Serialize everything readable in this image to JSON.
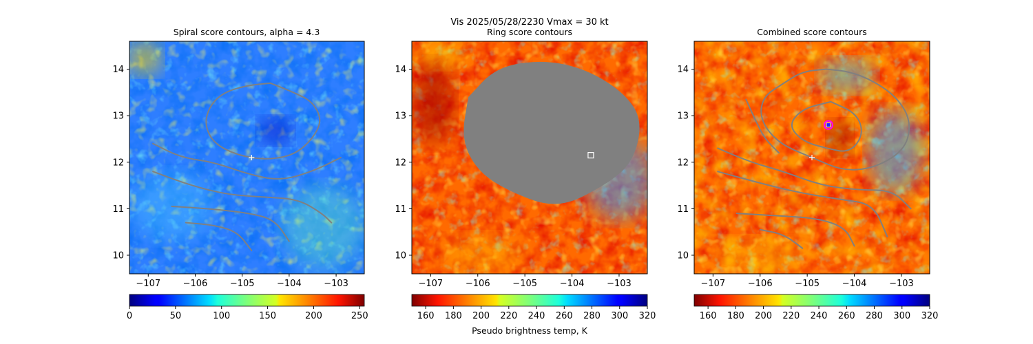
{
  "figure": {
    "suptitle_line1": "Vis  2025/05/28/2230    Vmax = 30 kt",
    "colorbar_label": "Pseudo brightness temp, K"
  },
  "colors": {
    "contour": "#808080",
    "overlay_gray": "#808080",
    "center_marker": "#ffffff",
    "ring_circle": "#ff00ff",
    "ring_center": "#2020ff"
  },
  "chart_data": [
    {
      "type": "heatmap",
      "title": "Spiral score contours, alpha =  4.3",
      "colormap": "jet",
      "x_ticks": [
        "−107",
        "−106",
        "−105",
        "−104",
        "−103"
      ],
      "y_ticks": [
        "10",
        "11",
        "12",
        "13",
        "14"
      ],
      "xlim": [
        -107.4,
        -102.4
      ],
      "ylim": [
        9.6,
        14.6
      ],
      "colorbar": {
        "ticks": [
          "0",
          "50",
          "100",
          "150",
          "200",
          "250"
        ],
        "range": [
          0,
          255
        ],
        "reversed": false
      },
      "markers": [
        {
          "kind": "plus",
          "lon": -104.8,
          "lat": 12.1
        }
      ],
      "contours": [
        [
          [
            -104.4,
            13.7
          ],
          [
            -104.9,
            13.65
          ],
          [
            -105.4,
            13.5
          ],
          [
            -105.7,
            13.2
          ],
          [
            -105.8,
            12.8
          ],
          [
            -105.6,
            12.4
          ],
          [
            -105.1,
            12.15
          ],
          [
            -104.5,
            12.05
          ],
          [
            -103.9,
            12.15
          ],
          [
            -103.5,
            12.5
          ],
          [
            -103.3,
            12.9
          ],
          [
            -103.5,
            13.3
          ],
          [
            -103.9,
            13.5
          ],
          [
            -104.4,
            13.7
          ]
        ],
        [
          [
            -106.9,
            12.4
          ],
          [
            -106.3,
            12.1
          ],
          [
            -105.6,
            12.0
          ],
          [
            -104.9,
            11.75
          ],
          [
            -104.2,
            11.6
          ],
          [
            -103.5,
            11.8
          ],
          [
            -102.9,
            12.1
          ]
        ],
        [
          [
            -106.9,
            11.8
          ],
          [
            -106.1,
            11.5
          ],
          [
            -105.3,
            11.3
          ],
          [
            -104.5,
            11.25
          ],
          [
            -103.8,
            11.2
          ],
          [
            -103.3,
            10.9
          ],
          [
            -103.1,
            10.7
          ]
        ],
        [
          [
            -106.5,
            11.05
          ],
          [
            -105.7,
            11.0
          ],
          [
            -104.8,
            10.9
          ],
          [
            -104.3,
            10.75
          ],
          [
            -104.0,
            10.3
          ]
        ],
        [
          [
            -106.2,
            10.7
          ],
          [
            -105.6,
            10.65
          ],
          [
            -105.1,
            10.5
          ],
          [
            -104.8,
            10.1
          ]
        ]
      ]
    },
    {
      "type": "heatmap",
      "title": "Ring score contours",
      "colormap": "jet_r",
      "x_ticks": [
        "−107",
        "−106",
        "−105",
        "−104",
        "−103"
      ],
      "y_ticks": [
        "10",
        "11",
        "12",
        "13",
        "14"
      ],
      "xlim": [
        -107.4,
        -102.4
      ],
      "ylim": [
        9.6,
        14.6
      ],
      "colorbar": {
        "ticks": [
          "160",
          "180",
          "200",
          "220",
          "240",
          "260",
          "280",
          "300",
          "320"
        ],
        "range": [
          150,
          320
        ],
        "reversed": true
      },
      "markers": [
        {
          "kind": "square",
          "lon": -103.6,
          "lat": 12.15
        }
      ],
      "overlay_region": [
        [
          -106.2,
          13.4
        ],
        [
          -105.6,
          14.05
        ],
        [
          -104.6,
          14.2
        ],
        [
          -103.7,
          14.0
        ],
        [
          -102.9,
          13.5
        ],
        [
          -102.5,
          12.9
        ],
        [
          -102.7,
          12.0
        ],
        [
          -103.3,
          11.5
        ],
        [
          -104.3,
          11.0
        ],
        [
          -105.3,
          11.35
        ],
        [
          -106.0,
          11.8
        ],
        [
          -106.35,
          12.5
        ],
        [
          -106.2,
          13.4
        ]
      ]
    },
    {
      "type": "heatmap",
      "title": "Combined score contours",
      "colormap": "jet_r",
      "x_ticks": [
        "−107",
        "−106",
        "−105",
        "−104",
        "−103"
      ],
      "y_ticks": [
        "10",
        "11",
        "12",
        "13",
        "14"
      ],
      "xlim": [
        -107.4,
        -102.4
      ],
      "ylim": [
        9.6,
        14.6
      ],
      "colorbar": {
        "ticks": [
          "160",
          "180",
          "200",
          "220",
          "240",
          "260",
          "280",
          "300",
          "320"
        ],
        "range": [
          150,
          320
        ],
        "reversed": true
      },
      "markers": [
        {
          "kind": "plus",
          "lon": -104.9,
          "lat": 12.1
        },
        {
          "kind": "circle",
          "lon": -104.55,
          "lat": 12.8
        }
      ],
      "contours": [
        [
          [
            -104.5,
            13.3
          ],
          [
            -105.1,
            13.15
          ],
          [
            -105.4,
            12.8
          ],
          [
            -105.1,
            12.45
          ],
          [
            -104.6,
            12.3
          ],
          [
            -104.1,
            12.2
          ],
          [
            -103.8,
            12.6
          ],
          [
            -103.95,
            13.05
          ],
          [
            -104.5,
            13.3
          ]
        ],
        [
          [
            -104.6,
            14.0
          ],
          [
            -105.1,
            13.95
          ],
          [
            -105.5,
            13.7
          ],
          [
            -105.95,
            13.4
          ],
          [
            -106.0,
            12.9
          ],
          [
            -105.6,
            12.4
          ],
          [
            -104.9,
            12.1
          ],
          [
            -104.2,
            11.8
          ],
          [
            -103.5,
            11.9
          ],
          [
            -102.9,
            12.3
          ],
          [
            -102.8,
            12.9
          ],
          [
            -103.1,
            13.4
          ],
          [
            -103.6,
            13.75
          ],
          [
            -104.1,
            13.95
          ],
          [
            -104.6,
            14.0
          ]
        ],
        [
          [
            -106.3,
            13.35
          ],
          [
            -106.1,
            12.9
          ],
          [
            -105.9,
            12.5
          ],
          [
            -105.6,
            12.2
          ]
        ],
        [
          [
            -106.9,
            12.3
          ],
          [
            -106.2,
            12.0
          ],
          [
            -105.5,
            11.8
          ],
          [
            -104.7,
            11.5
          ],
          [
            -103.9,
            11.4
          ],
          [
            -103.2,
            11.4
          ],
          [
            -102.8,
            11.0
          ]
        ],
        [
          [
            -106.9,
            11.8
          ],
          [
            -106.0,
            11.55
          ],
          [
            -105.2,
            11.35
          ],
          [
            -104.3,
            11.2
          ],
          [
            -103.6,
            11.1
          ],
          [
            -103.3,
            10.4
          ]
        ],
        [
          [
            -106.5,
            10.9
          ],
          [
            -105.7,
            10.85
          ],
          [
            -104.8,
            10.8
          ],
          [
            -104.2,
            10.6
          ],
          [
            -104.0,
            10.2
          ]
        ],
        [
          [
            -106.0,
            10.55
          ],
          [
            -105.5,
            10.45
          ],
          [
            -105.1,
            10.15
          ]
        ]
      ]
    }
  ]
}
